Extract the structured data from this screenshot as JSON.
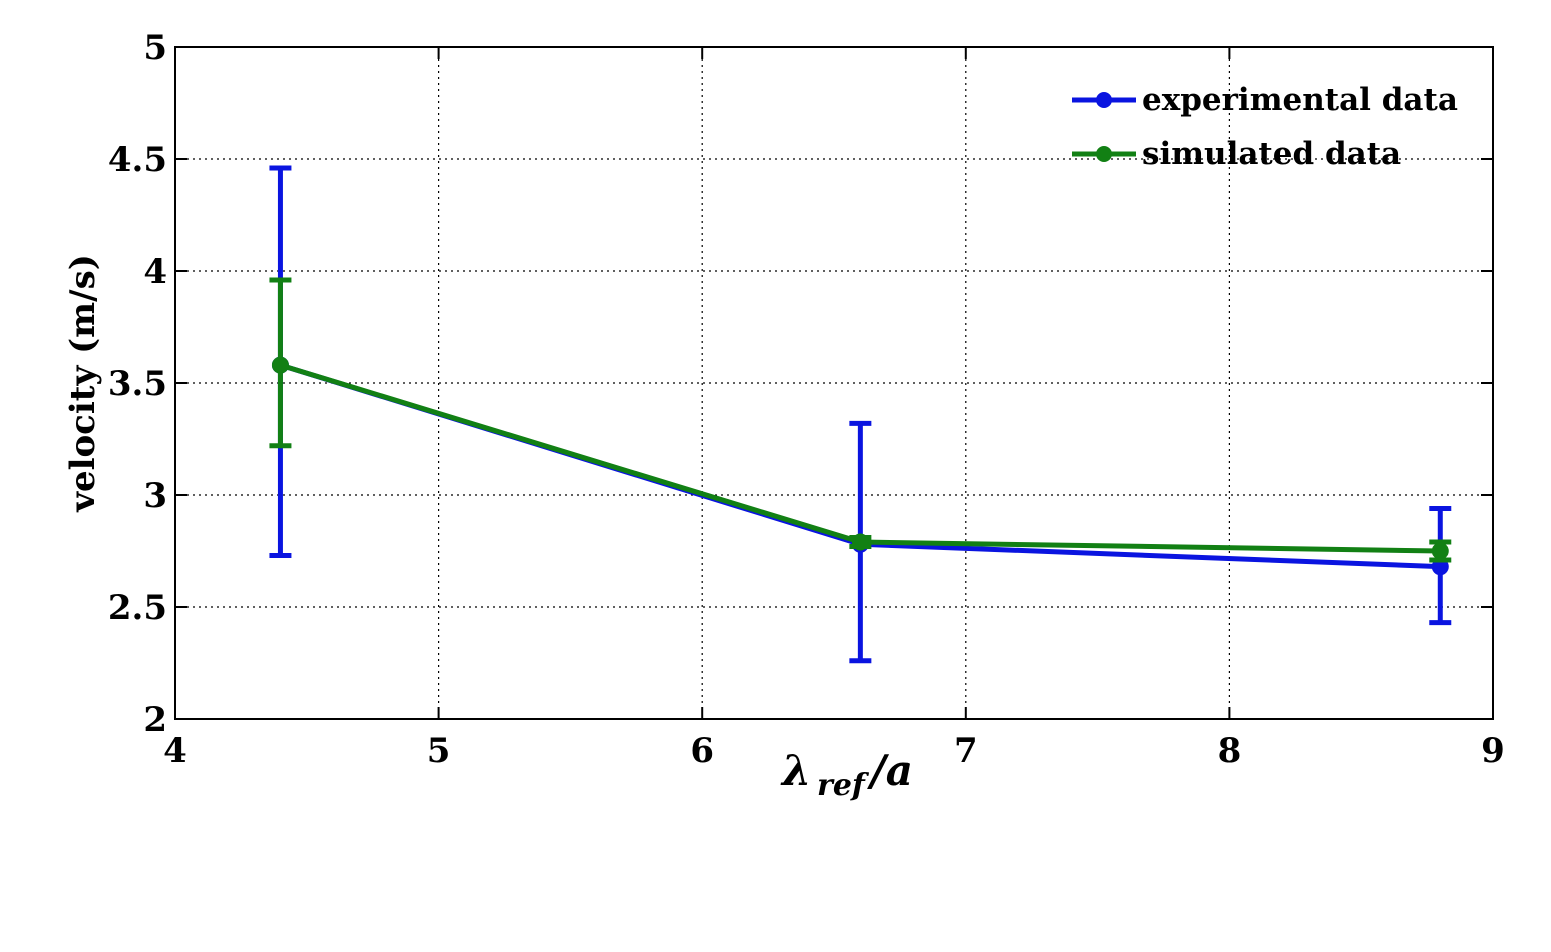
{
  "chart_data": {
    "type": "line",
    "title": "",
    "xlabel": {
      "main": "λ",
      "sub": "ref",
      "tail": "/a"
    },
    "ylabel": "velocity (m/s)",
    "xlim": [
      4,
      9
    ],
    "ylim": [
      2,
      5
    ],
    "xticks": [
      4,
      5,
      6,
      7,
      8,
      9
    ],
    "yticks": [
      2,
      2.5,
      3,
      3.5,
      4,
      4.5,
      5
    ],
    "ytick_labels": [
      "2",
      "2.5",
      "3",
      "3.5",
      "4",
      "4.5",
      "5"
    ],
    "grid": true,
    "legend_position": "top-right",
    "series": [
      {
        "name": "experimental data",
        "color": "#0a14e0",
        "x": [
          4.4,
          6.6,
          8.8
        ],
        "y": [
          3.58,
          2.78,
          2.68
        ],
        "err_low": [
          2.73,
          2.26,
          2.43
        ],
        "err_high": [
          4.46,
          3.32,
          2.94
        ]
      },
      {
        "name": "simulated data",
        "color": "#128014",
        "x": [
          4.4,
          6.6,
          8.8
        ],
        "y": [
          3.58,
          2.79,
          2.75
        ],
        "err_low": [
          3.22,
          2.77,
          2.71
        ],
        "err_high": [
          3.96,
          2.81,
          2.79
        ]
      }
    ]
  }
}
